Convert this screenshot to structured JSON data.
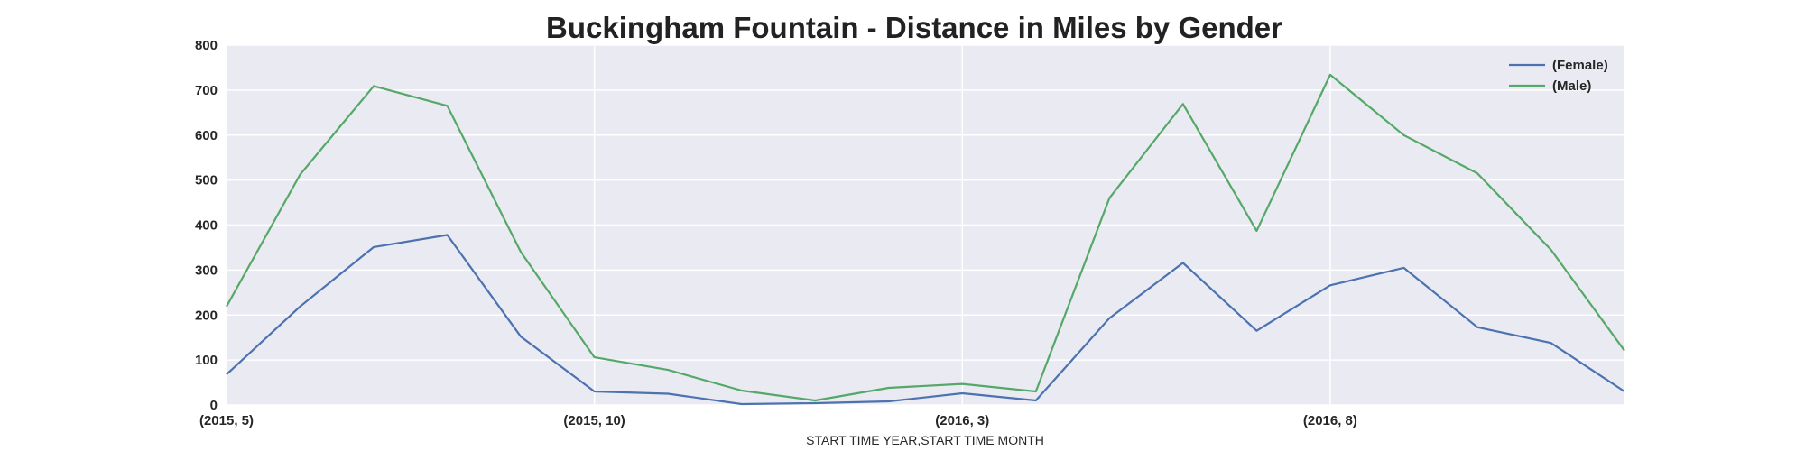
{
  "chart_data": {
    "type": "line",
    "title": "Buckingham Fountain - Distance in Miles by Gender",
    "xlabel": "START TIME YEAR,START TIME MONTH",
    "ylabel": "",
    "ylim": [
      0,
      800
    ],
    "yticks": [
      0,
      100,
      200,
      300,
      400,
      500,
      600,
      700,
      800
    ],
    "x": [
      "(2015, 5)",
      "(2015, 6)",
      "(2015, 7)",
      "(2015, 8)",
      "(2015, 9)",
      "(2015, 10)",
      "(2015, 11)",
      "(2015, 12)",
      "(2016, 1)",
      "(2016, 2)",
      "(2016, 3)",
      "(2016, 4)",
      "(2016, 5)",
      "(2016, 6)",
      "(2016, 7)",
      "(2016, 8)",
      "(2016, 9)",
      "(2016, 10)",
      "(2016, 11)",
      "(2016, 12)"
    ],
    "xticks": [
      "(2015, 5)",
      "(2015, 10)",
      "(2016, 3)",
      "(2016, 8)"
    ],
    "grid": true,
    "legend_position": "top-right",
    "series": [
      {
        "name": "(Female)",
        "color": "#4c72b0",
        "values": [
          68,
          219,
          351,
          378,
          152,
          30,
          25,
          2,
          4,
          8,
          26,
          10,
          193,
          316,
          165,
          266,
          305,
          173,
          138,
          30
        ]
      },
      {
        "name": "(Male)",
        "color": "#55a868",
        "values": [
          219,
          512,
          709,
          665,
          340,
          106,
          78,
          32,
          10,
          38,
          47,
          30,
          460,
          669,
          387,
          734,
          600,
          515,
          345,
          121
        ]
      }
    ]
  }
}
